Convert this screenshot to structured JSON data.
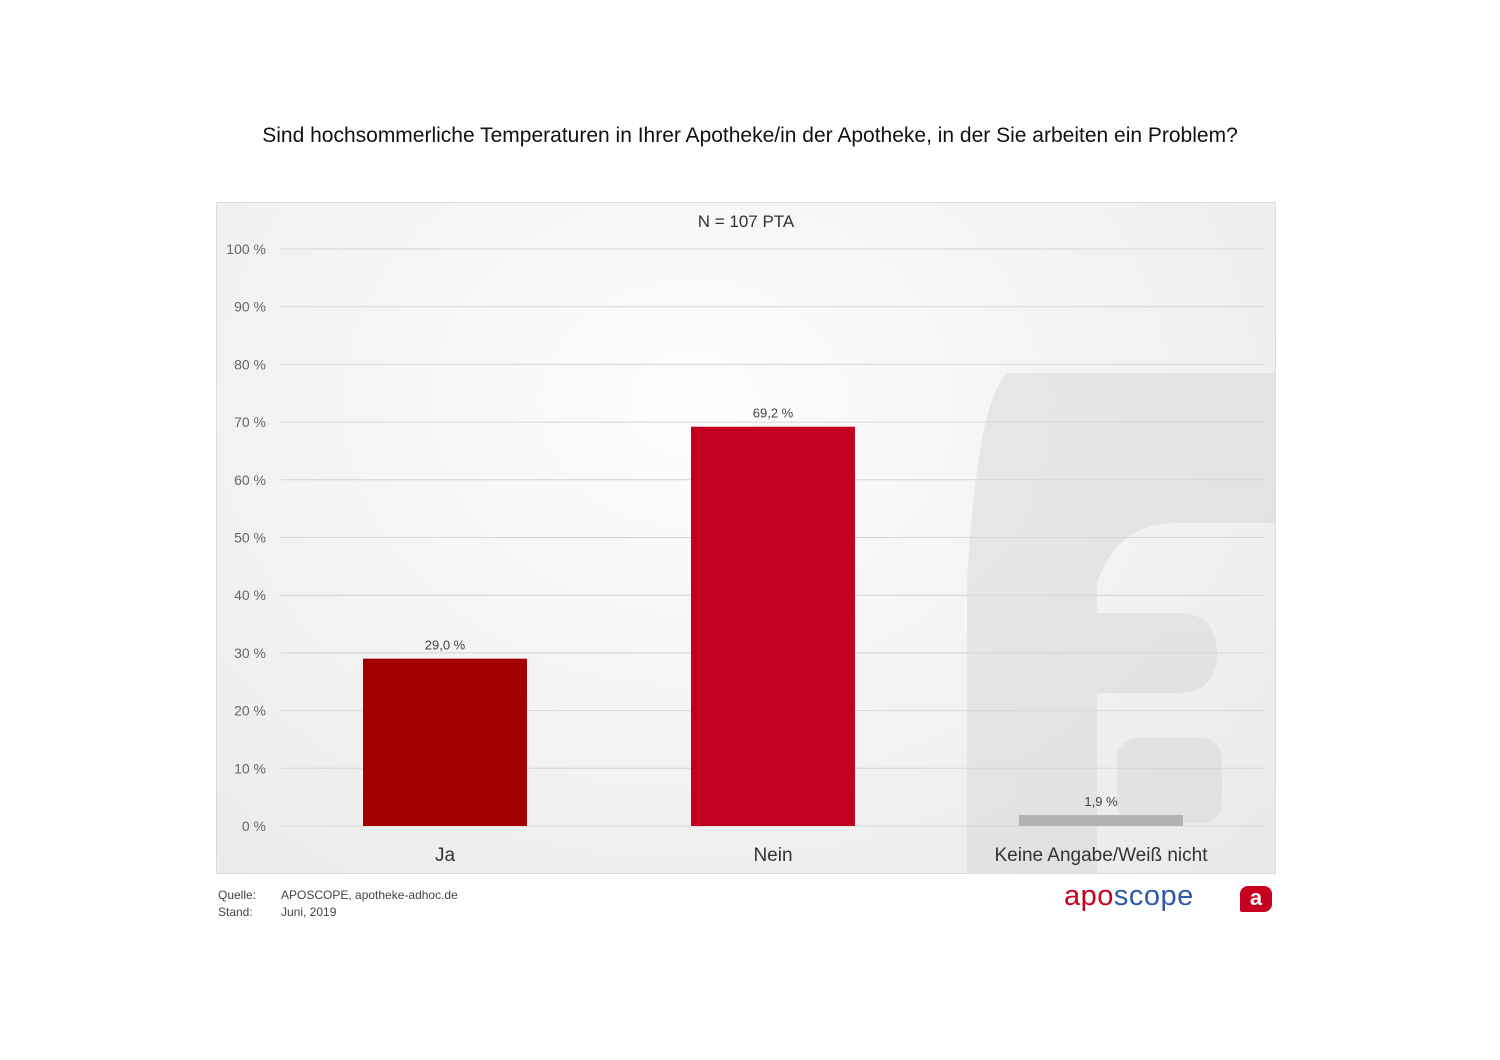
{
  "title": "Sind hochsommerliche Temperaturen in Ihrer Apotheke/in der Apotheke, in der Sie arbeiten ein Problem?",
  "sample": "N = 107 PTA",
  "footer": {
    "source_label": "Quelle:",
    "source_value": "APOSCOPE, apotheke-adhoc.de",
    "date_label": "Stand:",
    "date_value": "Juni, 2019"
  },
  "brand": {
    "part1": "apo",
    "part2": "scope",
    "badge": "a"
  },
  "colors": {
    "ja": "#a50000",
    "nein": "#c20022",
    "keine": "#b3b3b3",
    "brand_red": "#c8001f",
    "brand_blue": "#2f5aa8"
  },
  "chart_data": {
    "type": "bar",
    "title": "Sind hochsommerliche Temperaturen in Ihrer Apotheke/in der Apotheke, in der Sie arbeiten ein Problem?",
    "categories": [
      "Ja",
      "Nein",
      "Keine Angabe/Weiß nicht"
    ],
    "values": [
      29.0,
      69.2,
      1.9
    ],
    "value_labels": [
      "29,0 %",
      "69,2 %",
      "1,9 %"
    ],
    "bar_colors": [
      "#a50000",
      "#c20022",
      "#b3b3b3"
    ],
    "yticks": [
      0,
      10,
      20,
      30,
      40,
      50,
      60,
      70,
      80,
      90,
      100
    ],
    "ytick_labels": [
      "0 %",
      "10 %",
      "20 %",
      "30 %",
      "40 %",
      "50 %",
      "60 %",
      "70 %",
      "80 %",
      "90 %",
      "100 %"
    ],
    "ylim": [
      0,
      100
    ],
    "xlabel": "",
    "ylabel": "",
    "grid": true
  }
}
